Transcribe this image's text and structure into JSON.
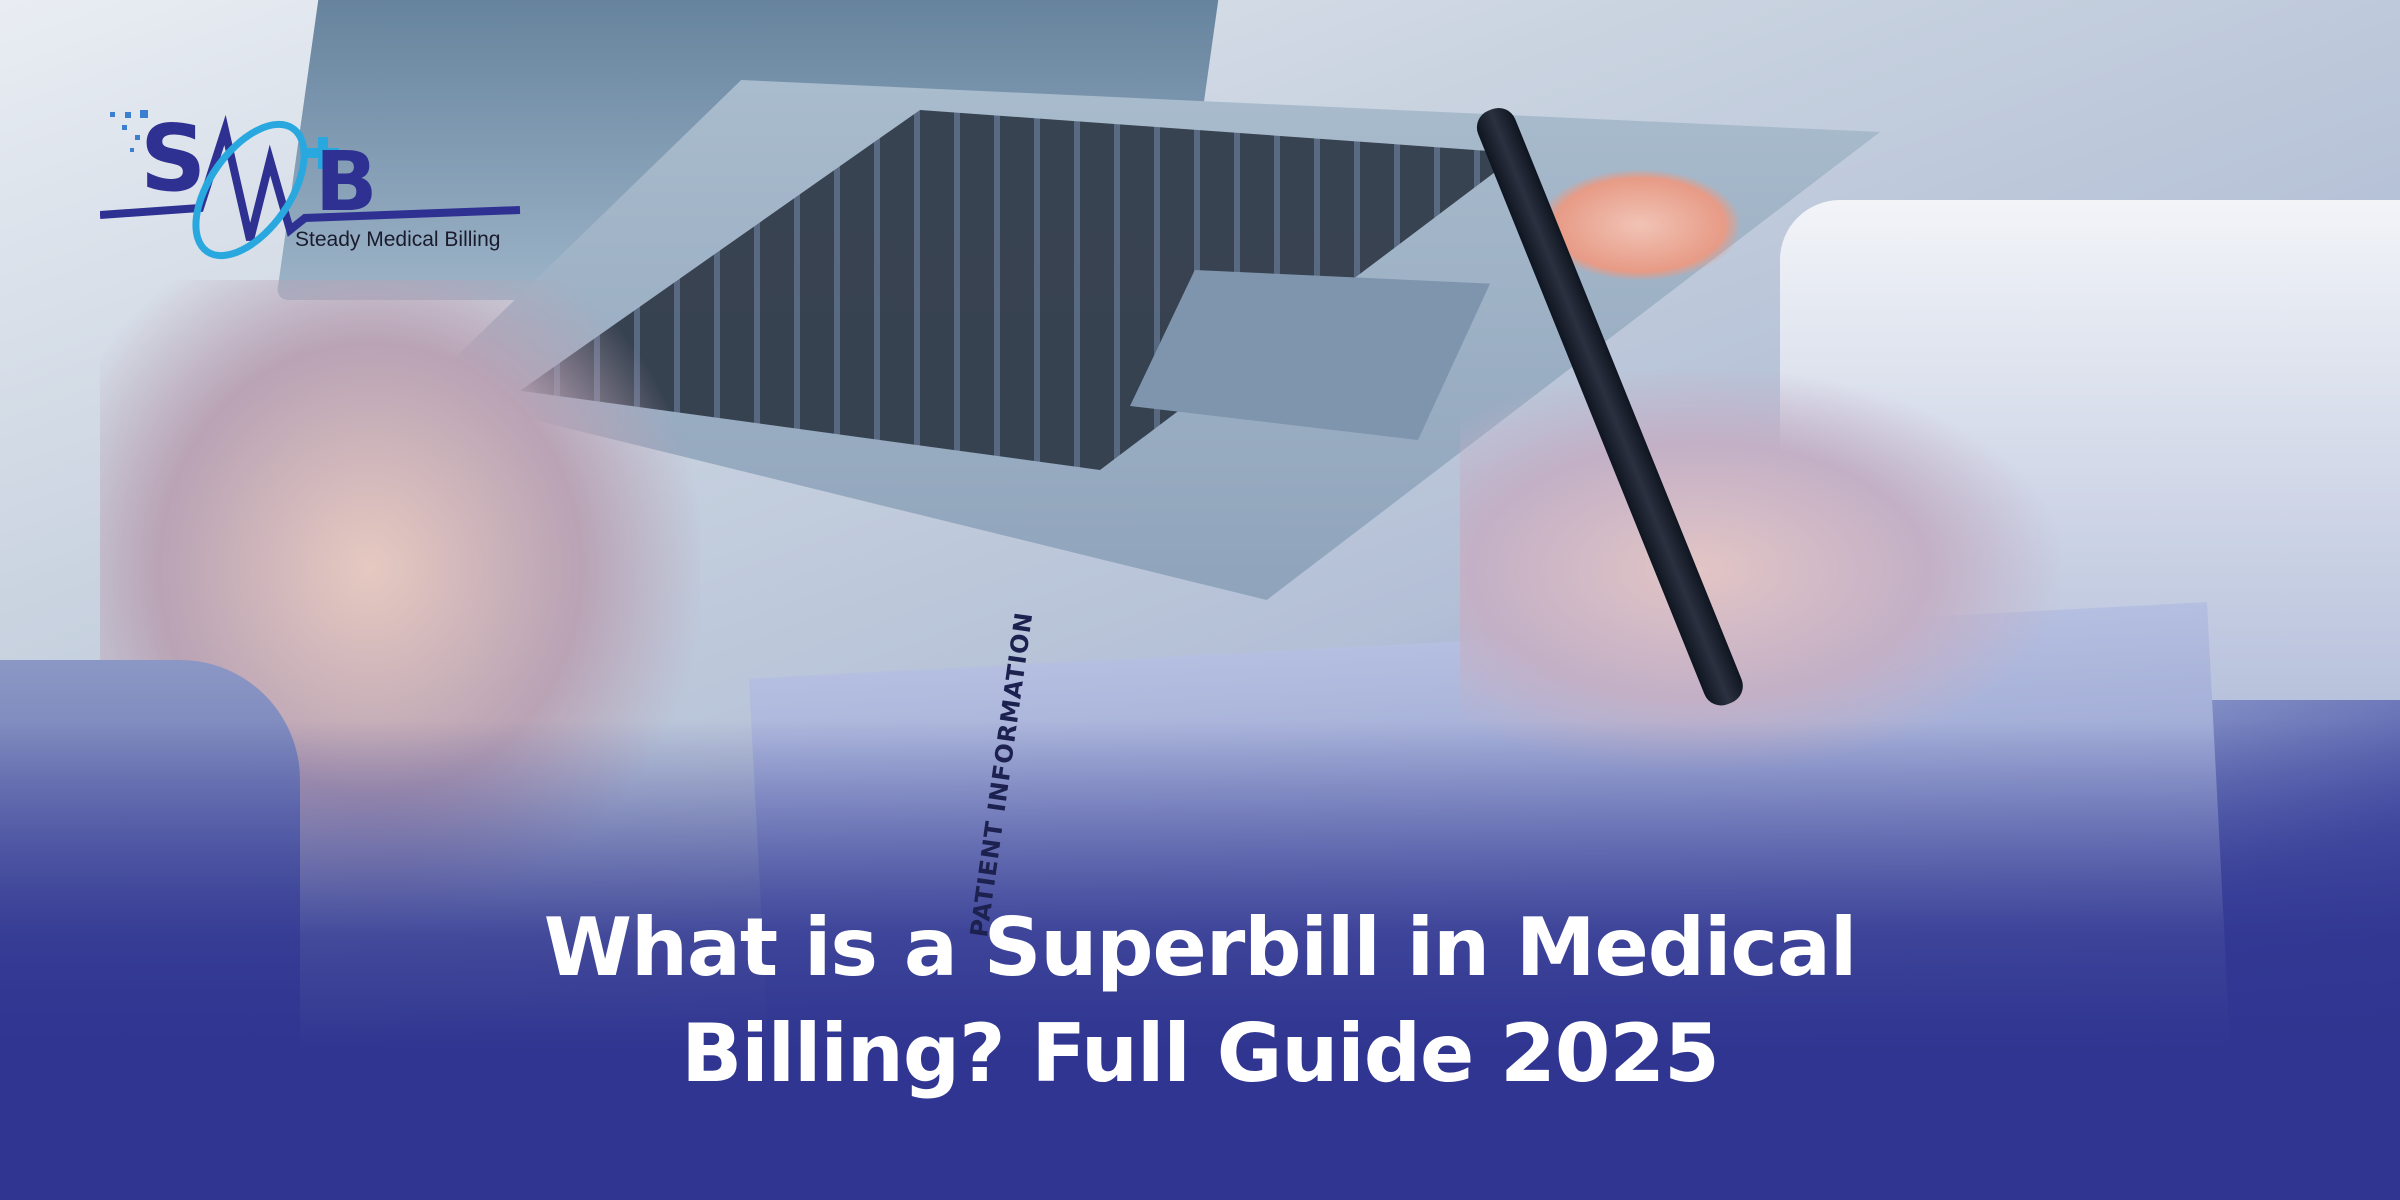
{
  "logo": {
    "monogram": "SMB",
    "tagline": "Steady Medical Billing",
    "colors": {
      "primary": "#2e3192",
      "accent": "#29a8e0"
    }
  },
  "headline": {
    "line1": "What is a Superbill in Medical",
    "line2": "Billing? Full Guide 2025"
  },
  "background": {
    "form_heading": "PATIENT INFORMATION",
    "overlay_color": "#2f3590"
  }
}
